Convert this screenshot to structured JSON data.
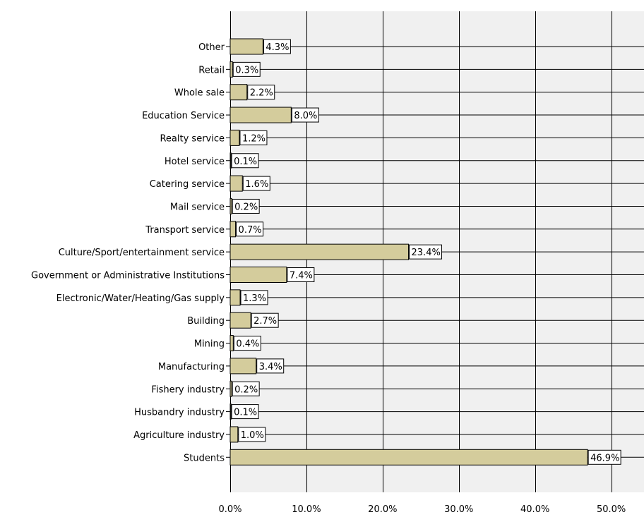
{
  "chart_data": {
    "type": "bar",
    "orientation": "horizontal",
    "categories": [
      "Other",
      "Retail",
      "Whole sale",
      "Education Service",
      "Realty service",
      "Hotel service",
      "Catering service",
      "Mail service",
      "Transport service",
      "Culture/Sport/entertainment service",
      "Government or Administrative Institutions",
      "Electronic/Water/Heating/Gas supply",
      "Building",
      "Mining",
      "Manufacturing",
      "Fishery industry",
      "Husbandry industry",
      "Agriculture industry",
      "Students"
    ],
    "values": [
      4.3,
      0.3,
      2.2,
      8.0,
      1.2,
      0.1,
      1.6,
      0.2,
      0.7,
      23.4,
      7.4,
      1.3,
      2.7,
      0.4,
      3.4,
      0.2,
      0.1,
      1.0,
      46.9
    ],
    "value_labels": [
      "4.3%",
      "0.3%",
      "2.2%",
      "8.0%",
      "1.2%",
      "0.1%",
      "1.6%",
      "0.2%",
      "0.7%",
      "23.4%",
      "7.4%",
      "1.3%",
      "2.7%",
      "0.4%",
      "3.4%",
      "0.2%",
      "0.1%",
      "1.0%",
      "46.9%"
    ],
    "xticks": [
      0,
      10,
      20,
      30,
      40,
      50
    ],
    "xtick_labels": [
      "0.0%",
      "10.0%",
      "20.0%",
      "30.0%",
      "40.0%",
      "50.0%"
    ],
    "xlim": [
      0,
      54.3
    ],
    "title": "",
    "xlabel": "",
    "ylabel": "",
    "grid": true,
    "legend": "none",
    "colors": {
      "bar_fill": "#d4cc9c",
      "bar_stroke": "#000000",
      "plot_background": "#f0f0f0",
      "grid": "#000000",
      "label_box": "#ffffff"
    }
  }
}
